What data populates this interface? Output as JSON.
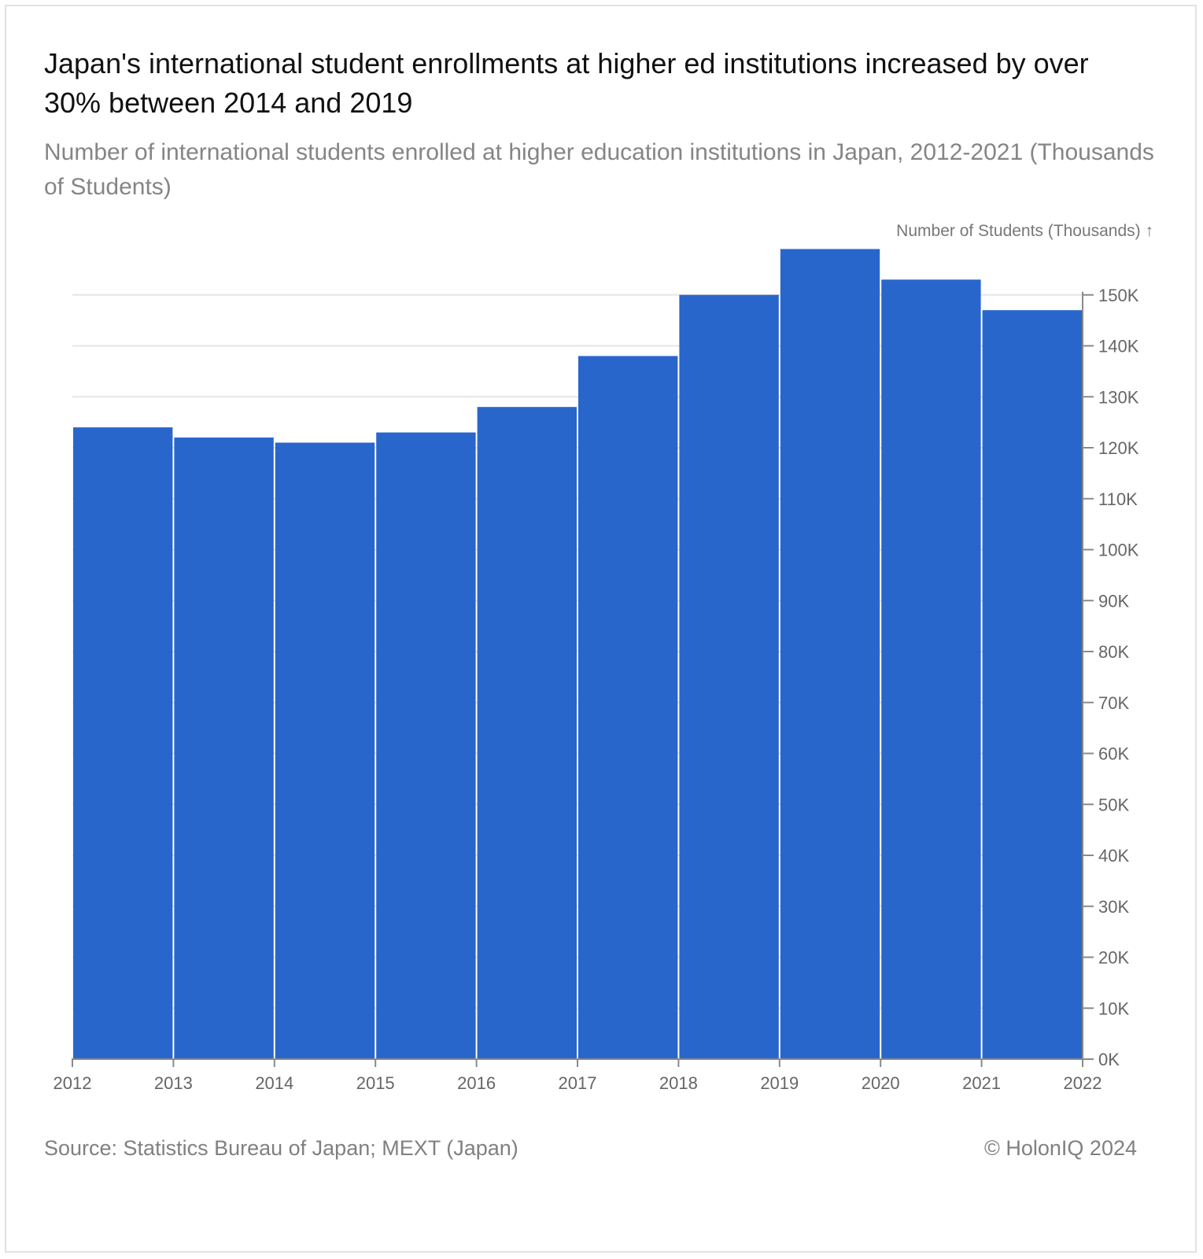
{
  "header": {
    "title": "Japan's international student enrollments at higher ed institutions increased by over 30% between 2014 and 2019",
    "subtitle": "Number of international students enrolled at higher education institutions in Japan, 2012-2021 (Thousands of Students)"
  },
  "footer": {
    "source": "Source: Statistics Bureau of Japan; MEXT (Japan)",
    "copyright": "© HolonIQ 2024"
  },
  "colors": {
    "bar": "#2966CC",
    "grid": "#e6e6e6",
    "axis": "#8a8a8a",
    "tick_text": "#666666"
  },
  "chart_data": {
    "type": "bar",
    "ylabel": "Number of Students (Thousands) ↑",
    "x_ticks": [
      "2012",
      "2013",
      "2014",
      "2015",
      "2016",
      "2017",
      "2018",
      "2019",
      "2020",
      "2021",
      "2022"
    ],
    "categories": [
      "2012",
      "2013",
      "2014",
      "2015",
      "2016",
      "2017",
      "2018",
      "2019",
      "2020",
      "2021"
    ],
    "values": [
      124,
      122,
      121,
      123,
      128,
      138,
      150,
      159,
      153,
      147
    ],
    "y_ticks": [
      "0K",
      "10K",
      "20K",
      "30K",
      "40K",
      "50K",
      "60K",
      "70K",
      "80K",
      "90K",
      "100K",
      "110K",
      "120K",
      "130K",
      "140K",
      "150K"
    ],
    "ylim": [
      0,
      160
    ],
    "y_axis_side": "right",
    "grid": true,
    "legend": "none"
  }
}
